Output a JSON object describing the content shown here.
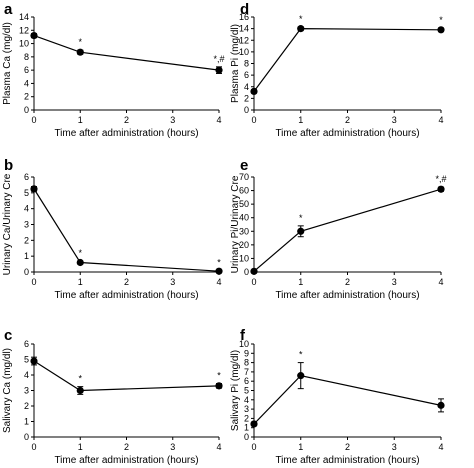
{
  "chart_data": [
    {
      "panel": "a",
      "type": "line",
      "xlabel": "Time after administration (hours)",
      "ylabel": "Plasma Ca (mg/dl)",
      "xlim": [
        0,
        4
      ],
      "ylim": [
        0,
        14
      ],
      "xticks": [
        0,
        1,
        2,
        3,
        4
      ],
      "yticks": [
        0,
        2,
        4,
        6,
        8,
        10,
        12,
        14
      ],
      "x": [
        0,
        1,
        4
      ],
      "y": [
        11.2,
        8.7,
        6.0
      ],
      "err": [
        0.3,
        0.3,
        0.5
      ],
      "annotations": [
        "",
        "*",
        "*,#"
      ]
    },
    {
      "panel": "b",
      "type": "line",
      "xlabel": "Time after administration (hours)",
      "ylabel": "Urinary  Ca/Urinary Cre",
      "xlim": [
        0,
        4
      ],
      "ylim": [
        0,
        6
      ],
      "xticks": [
        0,
        1,
        2,
        3,
        4
      ],
      "yticks": [
        0,
        1,
        2,
        3,
        4,
        5,
        6
      ],
      "x": [
        0,
        1,
        4
      ],
      "y": [
        5.25,
        0.6,
        0.05
      ],
      "err": [
        0.15,
        0.08,
        0.03
      ],
      "annotations": [
        "",
        "*",
        "*"
      ]
    },
    {
      "panel": "c",
      "type": "line",
      "xlabel": "Time after administration (hours)",
      "ylabel": "Salivary Ca (mg/dl)",
      "xlim": [
        0,
        4
      ],
      "ylim": [
        0,
        6
      ],
      "xticks": [
        0,
        1,
        2,
        3,
        4
      ],
      "yticks": [
        0,
        1,
        2,
        3,
        4,
        5,
        6
      ],
      "x": [
        0,
        1,
        4
      ],
      "y": [
        4.9,
        3.0,
        3.3
      ],
      "err": [
        0.25,
        0.25,
        0.15
      ],
      "annotations": [
        "",
        "*",
        "*"
      ]
    },
    {
      "panel": "d",
      "type": "line",
      "xlabel": "Time after administration (hours)",
      "ylabel": "Plasma Pi (mg/dl)",
      "xlim": [
        0,
        4
      ],
      "ylim": [
        0,
        16
      ],
      "xticks": [
        0,
        1,
        2,
        3,
        4
      ],
      "yticks": [
        0,
        2,
        4,
        6,
        8,
        10,
        12,
        14,
        16
      ],
      "x": [
        0,
        1,
        4
      ],
      "y": [
        3.2,
        14.0,
        13.8
      ],
      "err": [
        0.3,
        0.3,
        0.3
      ],
      "annotations": [
        "",
        "*",
        "*"
      ]
    },
    {
      "panel": "e",
      "type": "line",
      "xlabel": "Time after administration (hours)",
      "ylabel": "Urinary Pi/Urinary Cre",
      "xlim": [
        0,
        4
      ],
      "ylim": [
        0,
        70
      ],
      "xticks": [
        0,
        1,
        2,
        3,
        4
      ],
      "yticks": [
        0,
        10,
        20,
        30,
        40,
        50,
        60,
        70
      ],
      "x": [
        0,
        1,
        4
      ],
      "y": [
        0.5,
        30.0,
        61.0
      ],
      "err": [
        0.3,
        4.0,
        1.5
      ],
      "annotations": [
        "",
        "*",
        "*,#"
      ]
    },
    {
      "panel": "f",
      "type": "line",
      "xlabel": "Time after administration (hours)",
      "ylabel": "Salivary Pi (mg/dl)",
      "xlim": [
        0,
        4
      ],
      "ylim": [
        0,
        10
      ],
      "xticks": [
        0,
        1,
        2,
        3,
        4
      ],
      "yticks": [
        0,
        1,
        2,
        3,
        4,
        5,
        6,
        7,
        8,
        9,
        10
      ],
      "x": [
        0,
        1,
        4
      ],
      "y": [
        1.4,
        6.6,
        3.4
      ],
      "err": [
        0.2,
        1.4,
        0.7
      ],
      "annotations": [
        "",
        "*",
        ""
      ]
    }
  ]
}
